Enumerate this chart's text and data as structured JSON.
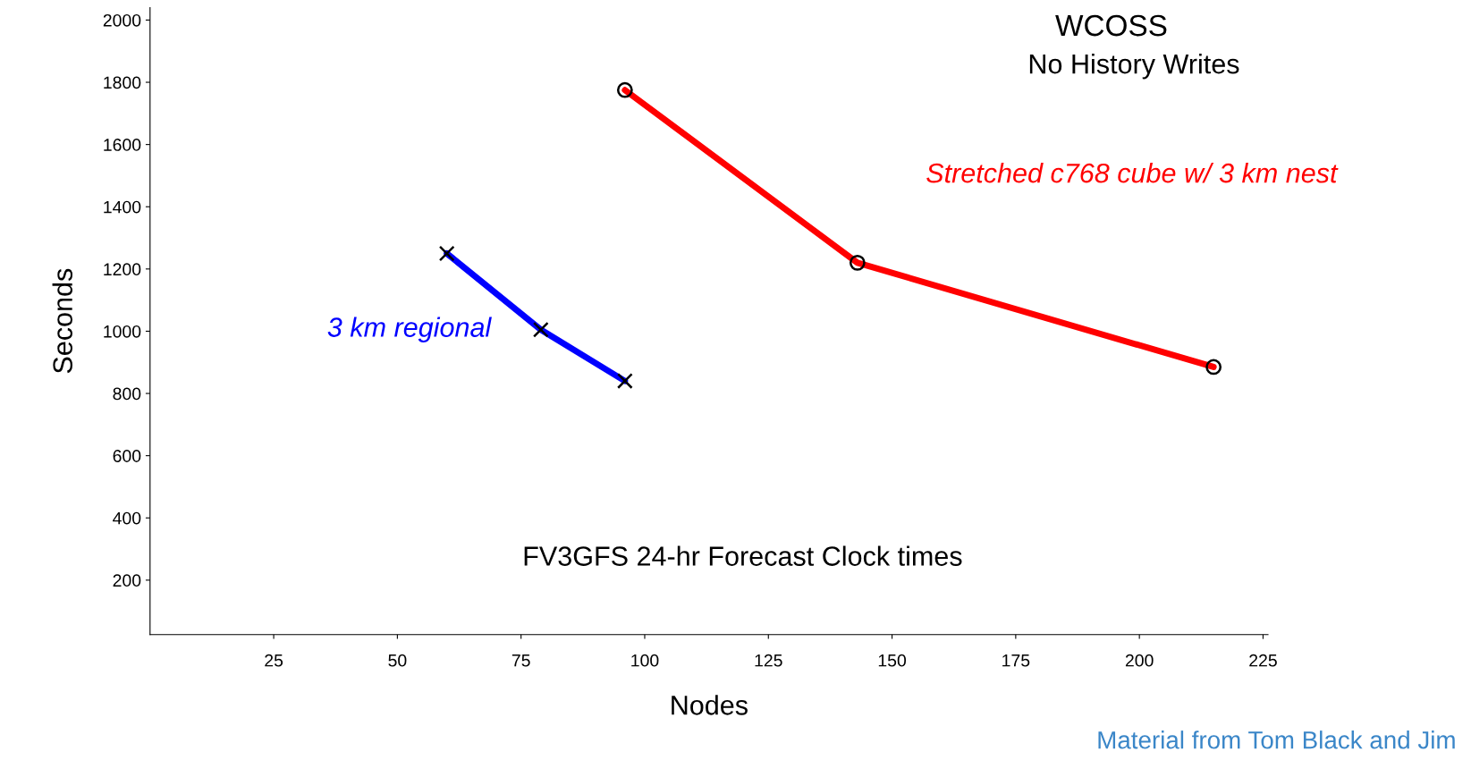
{
  "chart_data": {
    "type": "line",
    "title": "FV3GFS 24-hr Forecast Clock times",
    "xlabel": "Nodes",
    "ylabel": "Seconds",
    "annotations": [
      "WCOSS",
      "No History Writes",
      "Material from Tom Black and Jim"
    ],
    "xlim": [
      0,
      226
    ],
    "xticks": [
      25,
      50,
      75,
      100,
      125,
      150,
      175,
      200,
      225
    ],
    "ylim": [
      25,
      2040
    ],
    "yticks": [
      200,
      400,
      600,
      800,
      1000,
      1200,
      1400,
      1600,
      1800,
      2000
    ],
    "grid": false,
    "legend": false,
    "series": [
      {
        "name": "3 km regional",
        "color": "#0000ff",
        "marker": "cross",
        "x": [
          60,
          79,
          96
        ],
        "values": [
          1250,
          1005,
          840
        ]
      },
      {
        "name": "Stretched c768 cube w/ 3 km nest",
        "color": "#ff0000",
        "marker": "circle",
        "x": [
          96,
          143,
          215
        ],
        "values": [
          1775,
          1220,
          885
        ]
      }
    ]
  }
}
